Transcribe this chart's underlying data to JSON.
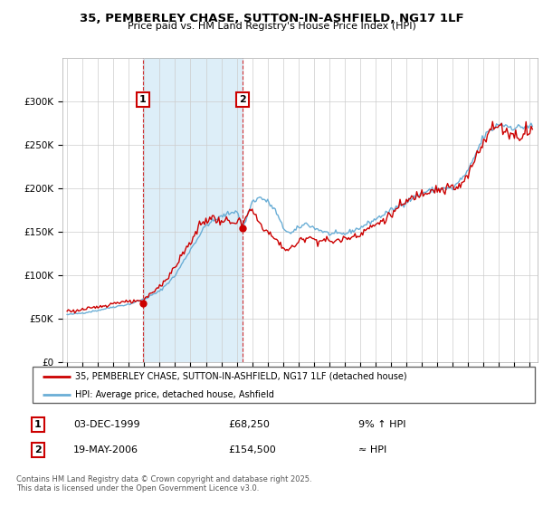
{
  "title": "35, PEMBERLEY CHASE, SUTTON-IN-ASHFIELD, NG17 1LF",
  "subtitle": "Price paid vs. HM Land Registry's House Price Index (HPI)",
  "hpi_color": "#6aaed6",
  "hpi_fill_color": "#ddeef8",
  "price_color": "#cc0000",
  "vline_color": "#cc0000",
  "background_color": "#ffffff",
  "grid_color": "#cccccc",
  "ylim": [
    0,
    350000
  ],
  "yticks": [
    0,
    50000,
    100000,
    150000,
    200000,
    250000,
    300000
  ],
  "xlim_start": 1994.7,
  "xlim_end": 2025.5,
  "sale1_year": 1999.92,
  "sale1_price": 68250,
  "sale2_year": 2006.38,
  "sale2_price": 154500,
  "legend_label_price": "35, PEMBERLEY CHASE, SUTTON-IN-ASHFIELD, NG17 1LF (detached house)",
  "legend_label_hpi": "HPI: Average price, detached house, Ashfield",
  "footer": "Contains HM Land Registry data © Crown copyright and database right 2025.\nThis data is licensed under the Open Government Licence v3.0."
}
